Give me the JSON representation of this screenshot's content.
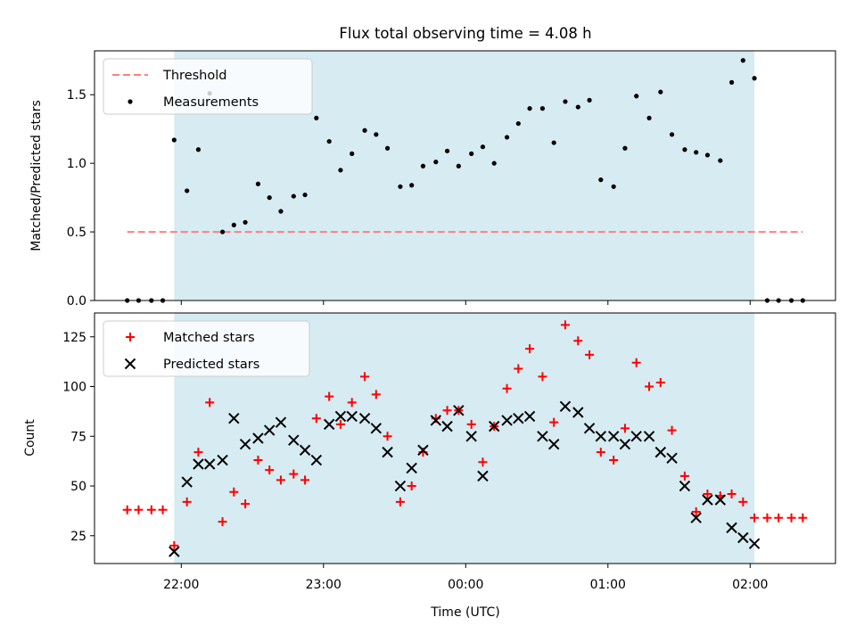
{
  "figure": {
    "title": "Flux total observing time = 4.08 h",
    "xlabel": "Time (UTC)",
    "xticks": [
      {
        "label": "22:00",
        "hours": 22.0
      },
      {
        "label": "23:00",
        "hours": 23.0
      },
      {
        "label": "00:00",
        "hours": 24.0
      },
      {
        "label": "01:00",
        "hours": 25.0
      },
      {
        "label": "02:00",
        "hours": 26.0
      }
    ],
    "xlim": [
      21.39,
      26.6
    ],
    "shaded_interval": [
      21.95,
      26.03
    ],
    "colors": {
      "shade": "#add8e6",
      "threshold": "#ff7f7f",
      "matched": "#ff0000",
      "predicted": "#000000",
      "measurement": "#000000"
    }
  },
  "chart_data": [
    {
      "type": "scatter",
      "ylabel": "Matched/Predicted stars",
      "ylim": [
        0,
        1.82
      ],
      "yticks": [
        "0.0",
        "0.5",
        "1.0",
        "1.5"
      ],
      "ytick_values": [
        0,
        0.5,
        1.0,
        1.5
      ],
      "legend": {
        "location": "upper-left",
        "entries": [
          "Threshold",
          "Measurements"
        ]
      },
      "series": [
        {
          "name": "Threshold",
          "kind": "dashed-line",
          "x": [
            21.62,
            26.37
          ],
          "y": [
            0.5,
            0.5
          ]
        },
        {
          "name": "Measurements",
          "kind": "dots",
          "x": [
            21.62,
            21.7,
            21.79,
            21.87,
            21.95,
            22.04,
            22.12,
            22.2,
            22.29,
            22.37,
            22.45,
            22.54,
            22.62,
            22.7,
            22.79,
            22.87,
            22.95,
            23.04,
            23.12,
            23.2,
            23.29,
            23.37,
            23.45,
            23.54,
            23.62,
            23.7,
            23.79,
            23.87,
            23.95,
            24.04,
            24.12,
            24.2,
            24.29,
            24.37,
            24.45,
            24.54,
            24.62,
            24.7,
            24.79,
            24.87,
            24.95,
            25.04,
            25.12,
            25.2,
            25.29,
            25.37,
            25.45,
            25.54,
            25.62,
            25.7,
            25.79,
            25.87,
            25.95,
            26.03,
            26.12,
            26.2,
            26.29,
            26.37
          ],
          "y": [
            0,
            0,
            0,
            0,
            1.17,
            0.8,
            1.1,
            1.51,
            0.5,
            0.55,
            0.57,
            0.85,
            0.75,
            0.65,
            0.76,
            0.77,
            1.33,
            1.16,
            0.95,
            1.07,
            1.24,
            1.21,
            1.11,
            0.83,
            0.84,
            0.98,
            1.01,
            1.09,
            0.98,
            1.07,
            1.12,
            1.0,
            1.19,
            1.29,
            1.4,
            1.4,
            1.15,
            1.45,
            1.41,
            1.46,
            0.88,
            0.83,
            1.11,
            1.49,
            1.33,
            1.52,
            1.21,
            1.1,
            1.08,
            1.06,
            1.02,
            1.59,
            1.75,
            1.62,
            0,
            0,
            0,
            0
          ]
        }
      ]
    },
    {
      "type": "scatter",
      "ylabel": "Count",
      "ylim": [
        11,
        137
      ],
      "yticks": [
        "25",
        "50",
        "75",
        "100",
        "125"
      ],
      "ytick_values": [
        25,
        50,
        75,
        100,
        125
      ],
      "legend": {
        "location": "upper-left",
        "entries": [
          "Matched stars",
          "Predicted stars"
        ]
      },
      "series": [
        {
          "name": "Matched stars",
          "marker": "plus",
          "x": [
            21.62,
            21.7,
            21.79,
            21.87,
            21.95,
            22.04,
            22.12,
            22.2,
            22.29,
            22.37,
            22.45,
            22.54,
            22.62,
            22.7,
            22.79,
            22.87,
            22.95,
            23.04,
            23.12,
            23.2,
            23.29,
            23.37,
            23.45,
            23.54,
            23.62,
            23.7,
            23.79,
            23.87,
            23.95,
            24.04,
            24.12,
            24.2,
            24.29,
            24.37,
            24.45,
            24.54,
            24.62,
            24.7,
            24.79,
            24.87,
            24.95,
            25.04,
            25.12,
            25.2,
            25.29,
            25.37,
            25.45,
            25.54,
            25.62,
            25.7,
            25.79,
            25.87,
            25.95,
            26.03,
            26.12,
            26.2,
            26.29,
            26.37
          ],
          "y": [
            38,
            38,
            38,
            38,
            20,
            42,
            67,
            92,
            32,
            47,
            41,
            63,
            58,
            53,
            56,
            53,
            84,
            95,
            81,
            92,
            105,
            96,
            75,
            42,
            50,
            67,
            84,
            88,
            88,
            81,
            62,
            80,
            99,
            109,
            119,
            105,
            82,
            131,
            123,
            116,
            67,
            63,
            79,
            112,
            100,
            102,
            78,
            55,
            37,
            46,
            45,
            46,
            42,
            34,
            34,
            34,
            34,
            34
          ]
        },
        {
          "name": "Predicted stars",
          "marker": "x",
          "x": [
            21.95,
            22.04,
            22.12,
            22.2,
            22.29,
            22.37,
            22.45,
            22.54,
            22.62,
            22.7,
            22.79,
            22.87,
            22.95,
            23.04,
            23.12,
            23.2,
            23.29,
            23.37,
            23.45,
            23.54,
            23.62,
            23.7,
            23.79,
            23.87,
            23.95,
            24.04,
            24.12,
            24.2,
            24.29,
            24.37,
            24.45,
            24.54,
            24.62,
            24.7,
            24.79,
            24.87,
            24.95,
            25.04,
            25.12,
            25.2,
            25.29,
            25.37,
            25.45,
            25.54,
            25.62,
            25.7,
            25.79,
            25.87,
            25.95,
            26.03
          ],
          "y": [
            17,
            52,
            61,
            61,
            63,
            84,
            71,
            74,
            78,
            82,
            73,
            68,
            63,
            81,
            85,
            85,
            84,
            79,
            67,
            50,
            59,
            68,
            83,
            80,
            88,
            75,
            55,
            80,
            83,
            84,
            85,
            75,
            71,
            90,
            87,
            79,
            75,
            75,
            71,
            75,
            75,
            67,
            64,
            50,
            34,
            43,
            43,
            29,
            24,
            21
          ]
        }
      ]
    }
  ]
}
